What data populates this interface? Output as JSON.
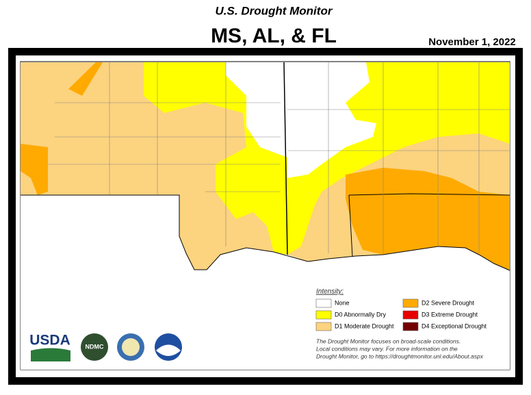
{
  "header": {
    "title": "U.S. Drought Monitor",
    "subtitle": "MS, AL, & FL",
    "date": "November 1, 2022"
  },
  "legend": {
    "title": "Intensity:",
    "items": [
      {
        "label": "None",
        "color": "#ffffff"
      },
      {
        "label": "D0 Abnormally Dry",
        "color": "#ffff00"
      },
      {
        "label": "D1 Moderate Drought",
        "color": "#fcd37f"
      },
      {
        "label": "D2 Severe Drought",
        "color": "#ffaa00"
      },
      {
        "label": "D3 Extreme Drought",
        "color": "#e60000"
      },
      {
        "label": "D4 Exceptional Drought",
        "color": "#730000"
      }
    ]
  },
  "note": [
    "The Drought Monitor focuses on broad-scale conditions.",
    "Local conditions may vary. For more information on the",
    "Drought Monitor, go to https://droughtmonitor.unl.edu/About.aspx"
  ],
  "logos": [
    "USDA",
    "NDMC"
  ]
}
